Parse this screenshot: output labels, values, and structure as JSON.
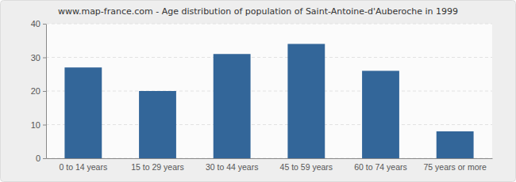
{
  "chart_data": {
    "type": "bar",
    "title": "www.map-france.com - Age distribution of population of Saint-Antoine-d'Auberoche in 1999",
    "categories": [
      "0 to 14 years",
      "15 to 29 years",
      "30 to 44 years",
      "45 to 59 years",
      "60 to 74 years",
      "75 years or more"
    ],
    "values": [
      27,
      20,
      31,
      34,
      26,
      8
    ],
    "color": "#336699",
    "ylim": [
      0,
      40
    ],
    "yticks": [
      0,
      10,
      20,
      30,
      40
    ],
    "grid": true
  }
}
